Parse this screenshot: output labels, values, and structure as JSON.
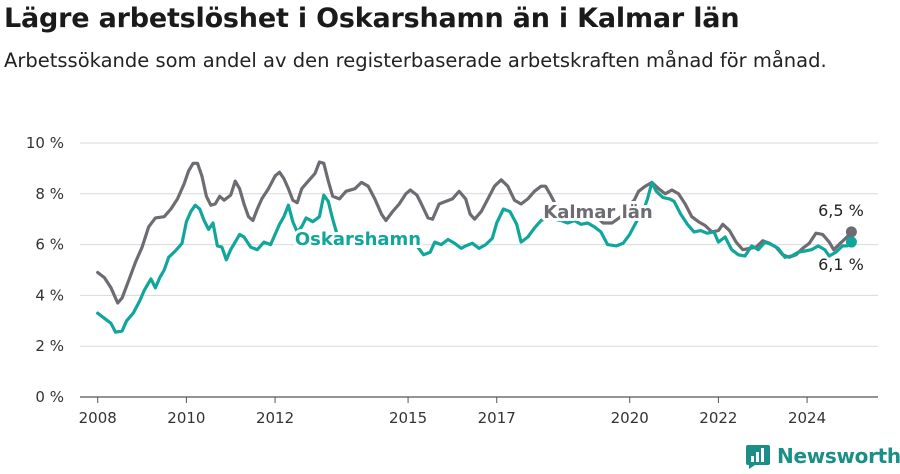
{
  "header": {
    "title": "Lägre arbetslöshet i Oskarshamn än i Kalmar län",
    "subtitle": "Arbetssökande som andel av den registerbaserade arbetskraften månad för månad."
  },
  "brand": {
    "name": "Newsworthy",
    "icon": "newsworthy-logo-icon"
  },
  "chart_data": {
    "type": "line",
    "y_ticks": [
      {
        "value": 0,
        "label": "0 %"
      },
      {
        "value": 2,
        "label": "2 %"
      },
      {
        "value": 4,
        "label": "4 %"
      },
      {
        "value": 6,
        "label": "6 %"
      },
      {
        "value": 8,
        "label": "8 %"
      },
      {
        "value": 10,
        "label": "10 %"
      }
    ],
    "x_ticks": [
      {
        "value": 2008,
        "label": "2008"
      },
      {
        "value": 2010,
        "label": "2010"
      },
      {
        "value": 2012,
        "label": "2012"
      },
      {
        "value": 2015,
        "label": "2015"
      },
      {
        "value": 2017,
        "label": "2017"
      },
      {
        "value": 2020,
        "label": "2020"
      },
      {
        "value": 2022,
        "label": "2022"
      },
      {
        "value": 2024,
        "label": "2024"
      }
    ],
    "xlim": [
      2007.6,
      2025.6
    ],
    "ylim": [
      0,
      10
    ],
    "grid": true,
    "series": [
      {
        "name": "Kalmar län",
        "color": "#6e6c72",
        "end_label": "6,5 %",
        "points": [
          [
            2008.0,
            4.9
          ],
          [
            2008.15,
            4.7
          ],
          [
            2008.3,
            4.3
          ],
          [
            2008.45,
            3.7
          ],
          [
            2008.55,
            3.9
          ],
          [
            2008.7,
            4.6
          ],
          [
            2008.85,
            5.3
          ],
          [
            2009.0,
            5.9
          ],
          [
            2009.15,
            6.7
          ],
          [
            2009.3,
            7.05
          ],
          [
            2009.5,
            7.1
          ],
          [
            2009.65,
            7.4
          ],
          [
            2009.8,
            7.8
          ],
          [
            2009.95,
            8.4
          ],
          [
            2010.05,
            8.9
          ],
          [
            2010.15,
            9.2
          ],
          [
            2010.25,
            9.2
          ],
          [
            2010.35,
            8.7
          ],
          [
            2010.45,
            7.9
          ],
          [
            2010.55,
            7.55
          ],
          [
            2010.65,
            7.6
          ],
          [
            2010.75,
            7.9
          ],
          [
            2010.85,
            7.75
          ],
          [
            2011.0,
            7.95
          ],
          [
            2011.1,
            8.5
          ],
          [
            2011.2,
            8.2
          ],
          [
            2011.3,
            7.6
          ],
          [
            2011.4,
            7.1
          ],
          [
            2011.5,
            6.95
          ],
          [
            2011.6,
            7.4
          ],
          [
            2011.7,
            7.8
          ],
          [
            2011.85,
            8.2
          ],
          [
            2012.0,
            8.7
          ],
          [
            2012.1,
            8.85
          ],
          [
            2012.2,
            8.6
          ],
          [
            2012.3,
            8.2
          ],
          [
            2012.4,
            7.75
          ],
          [
            2012.5,
            7.65
          ],
          [
            2012.6,
            8.2
          ],
          [
            2012.75,
            8.5
          ],
          [
            2012.9,
            8.8
          ],
          [
            2013.0,
            9.25
          ],
          [
            2013.1,
            9.2
          ],
          [
            2013.2,
            8.5
          ],
          [
            2013.3,
            7.9
          ],
          [
            2013.45,
            7.8
          ],
          [
            2013.6,
            8.1
          ],
          [
            2013.8,
            8.2
          ],
          [
            2013.95,
            8.45
          ],
          [
            2014.1,
            8.3
          ],
          [
            2014.25,
            7.8
          ],
          [
            2014.4,
            7.2
          ],
          [
            2014.5,
            6.95
          ],
          [
            2014.65,
            7.3
          ],
          [
            2014.8,
            7.6
          ],
          [
            2014.95,
            8.0
          ],
          [
            2015.05,
            8.15
          ],
          [
            2015.2,
            7.95
          ],
          [
            2015.3,
            7.6
          ],
          [
            2015.45,
            7.05
          ],
          [
            2015.55,
            7.0
          ],
          [
            2015.7,
            7.6
          ],
          [
            2015.85,
            7.7
          ],
          [
            2016.0,
            7.8
          ],
          [
            2016.15,
            8.1
          ],
          [
            2016.3,
            7.8
          ],
          [
            2016.4,
            7.2
          ],
          [
            2016.5,
            7.0
          ],
          [
            2016.65,
            7.3
          ],
          [
            2016.8,
            7.8
          ],
          [
            2016.95,
            8.3
          ],
          [
            2017.1,
            8.55
          ],
          [
            2017.25,
            8.3
          ],
          [
            2017.4,
            7.75
          ],
          [
            2017.55,
            7.6
          ],
          [
            2017.7,
            7.8
          ],
          [
            2017.85,
            8.1
          ],
          [
            2018.0,
            8.3
          ],
          [
            2018.1,
            8.3
          ],
          [
            2018.2,
            8.0
          ],
          [
            2018.35,
            7.5
          ],
          [
            2018.5,
            7.05
          ],
          [
            2018.65,
            7.15
          ],
          [
            2018.8,
            7.35
          ],
          [
            2018.95,
            7.25
          ],
          [
            2019.1,
            7.4
          ],
          [
            2019.25,
            7.1
          ],
          [
            2019.4,
            6.85
          ],
          [
            2019.6,
            6.85
          ],
          [
            2019.8,
            7.1
          ],
          [
            2019.95,
            7.5
          ],
          [
            2020.1,
            7.75
          ],
          [
            2020.2,
            8.1
          ],
          [
            2020.35,
            8.3
          ],
          [
            2020.5,
            8.45
          ],
          [
            2020.65,
            8.2
          ],
          [
            2020.8,
            8.0
          ],
          [
            2020.95,
            8.15
          ],
          [
            2021.1,
            8.0
          ],
          [
            2021.25,
            7.6
          ],
          [
            2021.4,
            7.1
          ],
          [
            2021.55,
            6.9
          ],
          [
            2021.7,
            6.75
          ],
          [
            2021.85,
            6.5
          ],
          [
            2022.0,
            6.55
          ],
          [
            2022.1,
            6.8
          ],
          [
            2022.25,
            6.55
          ],
          [
            2022.4,
            6.1
          ],
          [
            2022.55,
            5.8
          ],
          [
            2022.7,
            5.85
          ],
          [
            2022.85,
            5.9
          ],
          [
            2023.0,
            6.15
          ],
          [
            2023.15,
            6.05
          ],
          [
            2023.3,
            5.9
          ],
          [
            2023.45,
            5.6
          ],
          [
            2023.6,
            5.5
          ],
          [
            2023.75,
            5.6
          ],
          [
            2023.9,
            5.85
          ],
          [
            2024.05,
            6.05
          ],
          [
            2024.2,
            6.45
          ],
          [
            2024.35,
            6.4
          ],
          [
            2024.5,
            6.1
          ],
          [
            2024.6,
            5.8
          ],
          [
            2024.75,
            6.05
          ],
          [
            2024.9,
            6.3
          ],
          [
            2025.0,
            6.5
          ]
        ]
      },
      {
        "name": "Oskarshamn",
        "color": "#11a69b",
        "end_label": "6,1 %",
        "points": [
          [
            2008.0,
            3.3
          ],
          [
            2008.15,
            3.1
          ],
          [
            2008.3,
            2.9
          ],
          [
            2008.4,
            2.55
          ],
          [
            2008.55,
            2.6
          ],
          [
            2008.65,
            3.0
          ],
          [
            2008.8,
            3.3
          ],
          [
            2008.95,
            3.8
          ],
          [
            2009.05,
            4.2
          ],
          [
            2009.2,
            4.65
          ],
          [
            2009.3,
            4.3
          ],
          [
            2009.4,
            4.7
          ],
          [
            2009.5,
            5.0
          ],
          [
            2009.6,
            5.5
          ],
          [
            2009.75,
            5.75
          ],
          [
            2009.9,
            6.05
          ],
          [
            2010.0,
            6.9
          ],
          [
            2010.1,
            7.3
          ],
          [
            2010.2,
            7.55
          ],
          [
            2010.3,
            7.4
          ],
          [
            2010.4,
            6.95
          ],
          [
            2010.5,
            6.6
          ],
          [
            2010.6,
            6.85
          ],
          [
            2010.7,
            5.95
          ],
          [
            2010.8,
            5.9
          ],
          [
            2010.9,
            5.4
          ],
          [
            2011.0,
            5.8
          ],
          [
            2011.1,
            6.1
          ],
          [
            2011.2,
            6.4
          ],
          [
            2011.3,
            6.3
          ],
          [
            2011.45,
            5.9
          ],
          [
            2011.6,
            5.8
          ],
          [
            2011.75,
            6.1
          ],
          [
            2011.9,
            6.0
          ],
          [
            2012.0,
            6.4
          ],
          [
            2012.1,
            6.8
          ],
          [
            2012.2,
            7.1
          ],
          [
            2012.3,
            7.55
          ],
          [
            2012.4,
            6.9
          ],
          [
            2012.5,
            6.5
          ],
          [
            2012.6,
            6.7
          ],
          [
            2012.7,
            7.05
          ],
          [
            2012.85,
            6.9
          ],
          [
            2013.0,
            7.1
          ],
          [
            2013.1,
            7.95
          ],
          [
            2013.2,
            7.7
          ],
          [
            2013.3,
            7.0
          ],
          [
            2013.4,
            6.4
          ],
          [
            2013.5,
            6.3
          ],
          [
            2013.7,
            6.3
          ],
          [
            2013.9,
            6.25
          ],
          [
            2014.2,
            6.1
          ],
          [
            2014.5,
            6.0
          ],
          [
            2014.8,
            6.1
          ],
          [
            2015.0,
            6.15
          ],
          [
            2015.2,
            5.95
          ],
          [
            2015.35,
            5.6
          ],
          [
            2015.5,
            5.7
          ],
          [
            2015.6,
            6.1
          ],
          [
            2015.75,
            6.0
          ],
          [
            2015.9,
            6.2
          ],
          [
            2016.05,
            6.05
          ],
          [
            2016.2,
            5.85
          ],
          [
            2016.3,
            5.95
          ],
          [
            2016.45,
            6.05
          ],
          [
            2016.6,
            5.85
          ],
          [
            2016.75,
            6.0
          ],
          [
            2016.9,
            6.25
          ],
          [
            2017.0,
            6.85
          ],
          [
            2017.15,
            7.4
          ],
          [
            2017.3,
            7.3
          ],
          [
            2017.45,
            6.8
          ],
          [
            2017.55,
            6.1
          ],
          [
            2017.7,
            6.3
          ],
          [
            2017.85,
            6.65
          ],
          [
            2018.0,
            6.95
          ],
          [
            2018.15,
            7.05
          ],
          [
            2018.3,
            7.0
          ],
          [
            2018.45,
            6.95
          ],
          [
            2018.6,
            6.85
          ],
          [
            2018.75,
            6.95
          ],
          [
            2018.9,
            6.8
          ],
          [
            2019.05,
            6.85
          ],
          [
            2019.2,
            6.7
          ],
          [
            2019.35,
            6.5
          ],
          [
            2019.5,
            6.0
          ],
          [
            2019.7,
            5.95
          ],
          [
            2019.85,
            6.05
          ],
          [
            2020.0,
            6.4
          ],
          [
            2020.15,
            6.9
          ],
          [
            2020.3,
            7.3
          ],
          [
            2020.4,
            7.8
          ],
          [
            2020.5,
            8.45
          ],
          [
            2020.6,
            8.1
          ],
          [
            2020.75,
            7.85
          ],
          [
            2020.9,
            7.8
          ],
          [
            2021.0,
            7.7
          ],
          [
            2021.15,
            7.2
          ],
          [
            2021.3,
            6.8
          ],
          [
            2021.45,
            6.5
          ],
          [
            2021.6,
            6.55
          ],
          [
            2021.75,
            6.45
          ],
          [
            2021.9,
            6.5
          ],
          [
            2022.0,
            6.1
          ],
          [
            2022.15,
            6.3
          ],
          [
            2022.3,
            5.8
          ],
          [
            2022.45,
            5.6
          ],
          [
            2022.6,
            5.55
          ],
          [
            2022.75,
            5.95
          ],
          [
            2022.9,
            5.8
          ],
          [
            2023.05,
            6.1
          ],
          [
            2023.2,
            6.0
          ],
          [
            2023.35,
            5.85
          ],
          [
            2023.5,
            5.5
          ],
          [
            2023.65,
            5.55
          ],
          [
            2023.8,
            5.7
          ],
          [
            2023.95,
            5.75
          ],
          [
            2024.1,
            5.8
          ],
          [
            2024.25,
            5.95
          ],
          [
            2024.4,
            5.8
          ],
          [
            2024.5,
            5.55
          ],
          [
            2024.65,
            5.7
          ],
          [
            2024.8,
            5.95
          ],
          [
            2024.9,
            5.95
          ],
          [
            2025.0,
            6.1
          ]
        ]
      }
    ]
  }
}
